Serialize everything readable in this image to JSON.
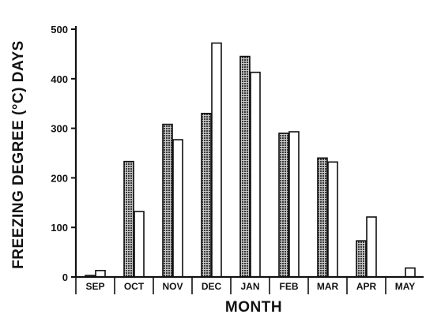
{
  "chart_data": {
    "type": "bar",
    "categories": [
      "SEP",
      "OCT",
      "NOV",
      "DEC",
      "JAN",
      "FEB",
      "MAR",
      "APR",
      "MAY"
    ],
    "series": [
      {
        "values": [
          3,
          233,
          308,
          330,
          445,
          290,
          240,
          73,
          0
        ],
        "fill": "dotted-dark"
      },
      {
        "values": [
          13,
          132,
          277,
          472,
          413,
          293,
          232,
          121,
          18
        ],
        "fill": "white"
      }
    ],
    "title": "",
    "xlabel": "MONTH",
    "ylabel": "FREEZING DEGREE (°C) DAYS",
    "ylim": [
      0,
      500
    ],
    "yticks": [
      0,
      100,
      200,
      300,
      400,
      500
    ],
    "grid": false,
    "legend": "none"
  },
  "colors": {
    "ink": "#111111",
    "dot_fill": "#3a3a3a",
    "dot_background": "#c8c8c8",
    "open_fill": "#ffffff"
  }
}
